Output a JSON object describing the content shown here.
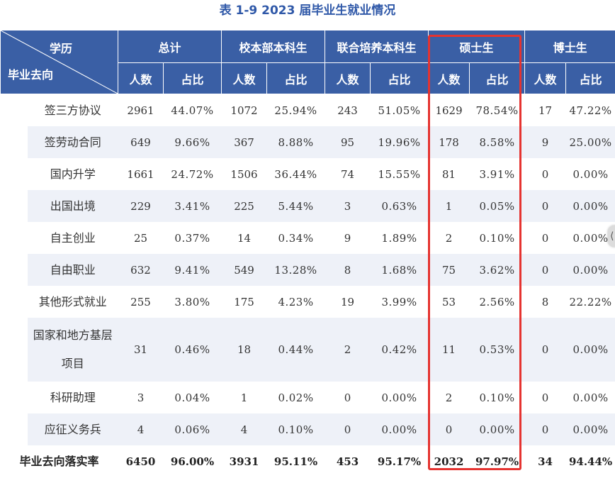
{
  "caption": "表 1-9 2023 届毕业生就业情况",
  "header": {
    "corner_top": "学历",
    "corner_bottom": "毕业去向",
    "groups": [
      "总计",
      "校本部本科生",
      "联合培养本科生",
      "硕士生",
      "博士生"
    ],
    "count_label": "人数",
    "ratio_label": "占比"
  },
  "side_label": [
    "去",
    "向",
    "落",
    "实"
  ],
  "rows": [
    {
      "name": "签三方协议",
      "cells": [
        "2961",
        "44.07%",
        "1072",
        "25.94%",
        "243",
        "51.05%",
        "1629",
        "78.54%",
        "17",
        "47.22%"
      ]
    },
    {
      "name": "签劳动合同",
      "cells": [
        "649",
        "9.66%",
        "367",
        "8.88%",
        "95",
        "19.96%",
        "178",
        "8.58%",
        "9",
        "25.00%"
      ]
    },
    {
      "name": "国内升学",
      "cells": [
        "1661",
        "24.72%",
        "1506",
        "36.44%",
        "74",
        "15.55%",
        "81",
        "3.91%",
        "0",
        "0.00%"
      ]
    },
    {
      "name": "出国出境",
      "cells": [
        "229",
        "3.41%",
        "225",
        "5.44%",
        "3",
        "0.63%",
        "1",
        "0.05%",
        "0",
        "0.00%"
      ]
    },
    {
      "name": "自主创业",
      "cells": [
        "25",
        "0.37%",
        "14",
        "0.34%",
        "9",
        "1.89%",
        "2",
        "0.10%",
        "0",
        "0.00%"
      ]
    },
    {
      "name": "自由职业",
      "cells": [
        "632",
        "9.41%",
        "549",
        "13.28%",
        "8",
        "1.68%",
        "75",
        "3.62%",
        "0",
        "0.00%"
      ]
    },
    {
      "name": "其他形式就业",
      "cells": [
        "255",
        "3.80%",
        "175",
        "4.23%",
        "19",
        "3.99%",
        "53",
        "2.56%",
        "8",
        "22.22%"
      ]
    },
    {
      "name": "国家和地方基层项目",
      "cells": [
        "31",
        "0.46%",
        "18",
        "0.44%",
        "2",
        "0.42%",
        "11",
        "0.53%",
        "0",
        "0.00%"
      ]
    },
    {
      "name": "科研助理",
      "cells": [
        "3",
        "0.04%",
        "1",
        "0.02%",
        "0",
        "0.00%",
        "2",
        "0.10%",
        "0",
        "0.00%"
      ]
    },
    {
      "name": "应征义务兵",
      "cells": [
        "4",
        "0.06%",
        "4",
        "0.10%",
        "0",
        "0.00%",
        "0",
        "0.00%",
        "0",
        "0.00%"
      ]
    }
  ],
  "footer": {
    "name": "毕业去向落实率",
    "cells": [
      "6450",
      "96.00%",
      "3931",
      "95.11%",
      "453",
      "95.17%",
      "2032",
      "97.97%",
      "34",
      "94.44%"
    ]
  },
  "colors": {
    "header_bg": "#3a5fa5",
    "highlight": "#e53330",
    "title": "#2f58a8"
  }
}
